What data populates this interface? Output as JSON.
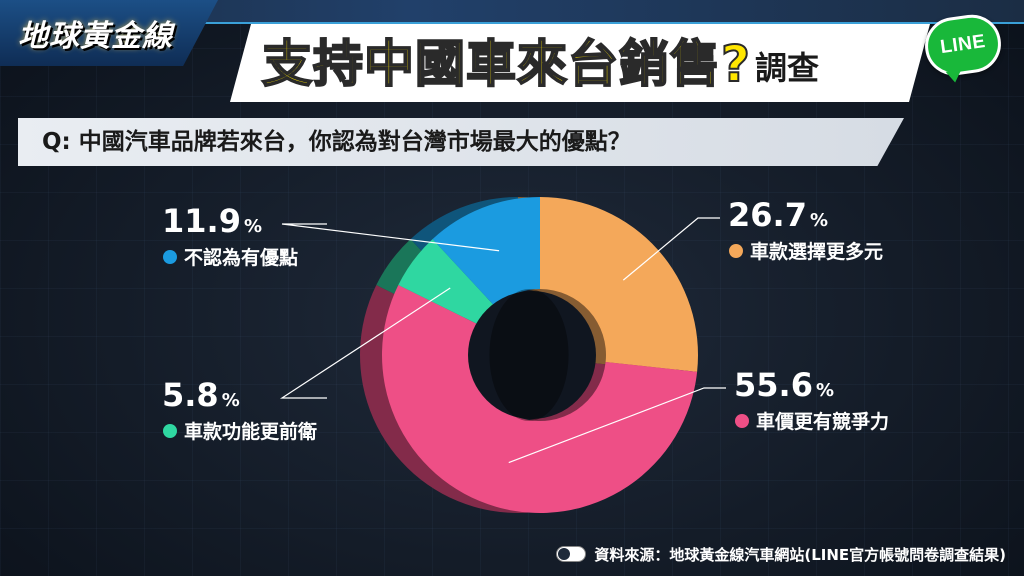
{
  "header": {
    "logo_text": "地球黃金線",
    "title": "支持中國車來台銷售?",
    "title_suffix": "調查",
    "badge": "LINE"
  },
  "question": {
    "prefix": "Q:",
    "text": "中國汽車品牌若來台，你認為對台灣市場最大的優點？"
  },
  "chart_data": {
    "type": "pie",
    "style": "3d-donut",
    "unit": "%",
    "slices": [
      {
        "label": "車款選擇更多元",
        "value": 26.7,
        "display": "26.7",
        "color": "#f4a85a"
      },
      {
        "label": "車價更有競爭力",
        "value": 55.6,
        "display": "55.6",
        "color": "#ee4f86"
      },
      {
        "label": "車款功能更前衛",
        "value": 5.8,
        "display": "5.8",
        "color": "#2fd7a1"
      },
      {
        "label": "不認為有優點",
        "value": 11.9,
        "display": "11.9",
        "color": "#1b9be0"
      }
    ]
  },
  "footer": {
    "source": "資料來源：地球黃金線汽車網站(LINE官方帳號問卷調查結果)"
  }
}
